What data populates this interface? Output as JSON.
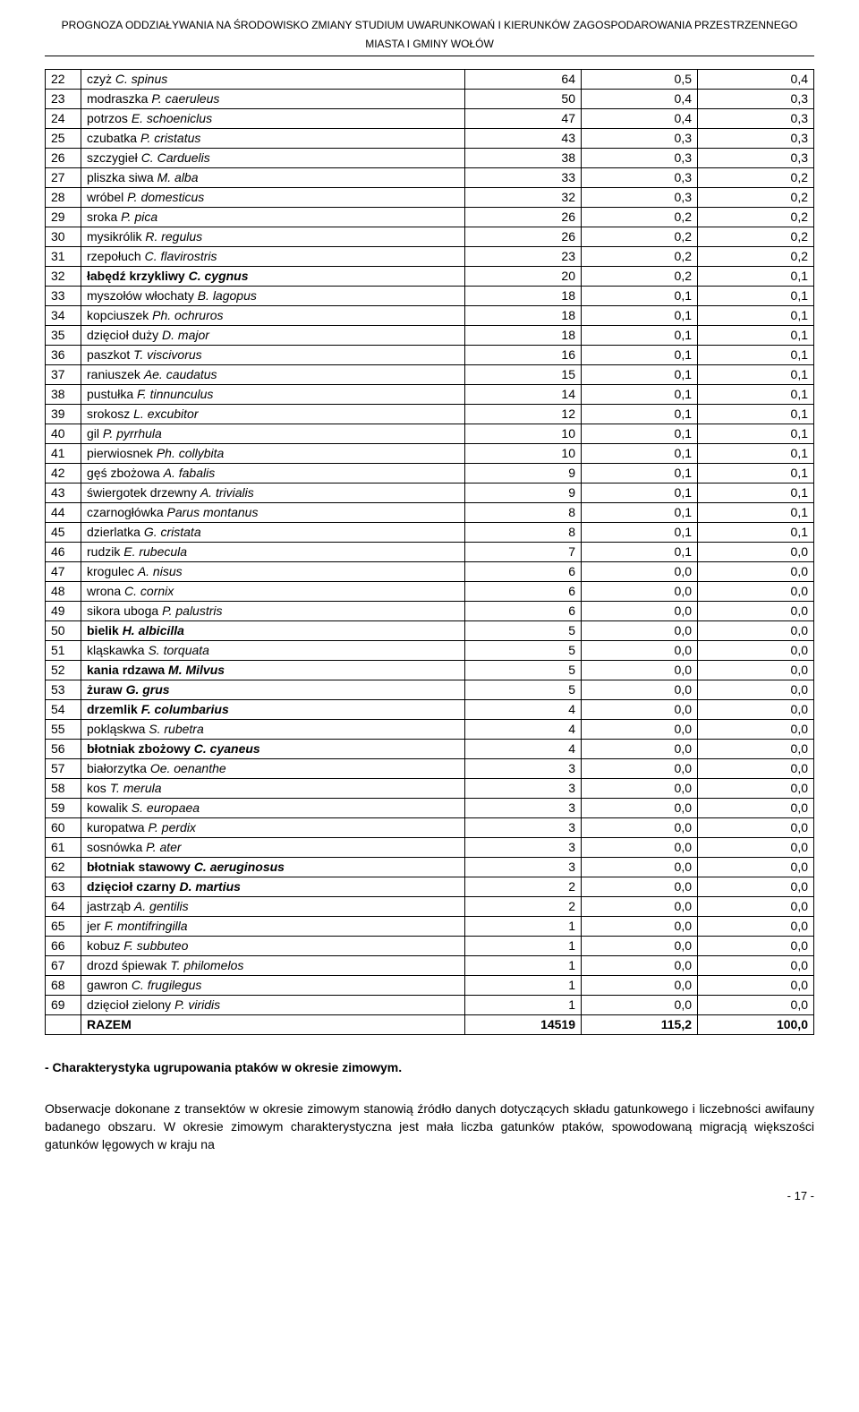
{
  "header": {
    "title_line1": "PROGNOZA ODDZIAŁYWANIA NA ŚRODOWISKO ZMIANY STUDIUM UWARUNKOWAŃ I KIERUNKÓW ZAGOSPODAROWANIA PRZESTRZENNEGO",
    "title_line2": "MIASTA I GMINY WOŁÓW"
  },
  "table": {
    "rows": [
      {
        "idx": "22",
        "name_prefix": "czyż ",
        "latin": "C. spinus",
        "v1": "64",
        "v2": "0,5",
        "v3": "0,4",
        "bold": false
      },
      {
        "idx": "23",
        "name_prefix": "modraszka ",
        "latin": "P. caeruleus",
        "v1": "50",
        "v2": "0,4",
        "v3": "0,3",
        "bold": false
      },
      {
        "idx": "24",
        "name_prefix": "potrzos ",
        "latin": "E. schoeniclus",
        "v1": "47",
        "v2": "0,4",
        "v3": "0,3",
        "bold": false
      },
      {
        "idx": "25",
        "name_prefix": "czubatka ",
        "latin": "P. cristatus",
        "v1": "43",
        "v2": "0,3",
        "v3": "0,3",
        "bold": false
      },
      {
        "idx": "26",
        "name_prefix": "szczygieł ",
        "latin": "C. Carduelis",
        "v1": "38",
        "v2": "0,3",
        "v3": "0,3",
        "bold": false
      },
      {
        "idx": "27",
        "name_prefix": "pliszka siwa ",
        "latin": "M. alba",
        "v1": "33",
        "v2": "0,3",
        "v3": "0,2",
        "bold": false
      },
      {
        "idx": "28",
        "name_prefix": "wróbel ",
        "latin": "P. domesticus",
        "v1": "32",
        "v2": "0,3",
        "v3": "0,2",
        "bold": false
      },
      {
        "idx": "29",
        "name_prefix": "sroka ",
        "latin": "P. pica",
        "v1": "26",
        "v2": "0,2",
        "v3": "0,2",
        "bold": false
      },
      {
        "idx": "30",
        "name_prefix": "mysikrólik ",
        "latin": "R. regulus",
        "v1": "26",
        "v2": "0,2",
        "v3": "0,2",
        "bold": false
      },
      {
        "idx": "31",
        "name_prefix": "rzepołuch ",
        "latin": "C. flavirostris",
        "v1": "23",
        "v2": "0,2",
        "v3": "0,2",
        "bold": false
      },
      {
        "idx": "32",
        "name_prefix": "łabędź krzykliwy ",
        "latin": "C. cygnus",
        "v1": "20",
        "v2": "0,2",
        "v3": "0,1",
        "bold": true
      },
      {
        "idx": "33",
        "name_prefix": "myszołów włochaty ",
        "latin": "B. lagopus",
        "v1": "18",
        "v2": "0,1",
        "v3": "0,1",
        "bold": false
      },
      {
        "idx": "34",
        "name_prefix": "kopciuszek ",
        "latin": "Ph. ochruros",
        "v1": "18",
        "v2": "0,1",
        "v3": "0,1",
        "bold": false
      },
      {
        "idx": "35",
        "name_prefix": "dzięcioł duży ",
        "latin": "D. major",
        "v1": "18",
        "v2": "0,1",
        "v3": "0,1",
        "bold": false
      },
      {
        "idx": "36",
        "name_prefix": "paszkot ",
        "latin": "T. viscivorus",
        "v1": "16",
        "v2": "0,1",
        "v3": "0,1",
        "bold": false
      },
      {
        "idx": "37",
        "name_prefix": "raniuszek ",
        "latin": "Ae. caudatus",
        "v1": "15",
        "v2": "0,1",
        "v3": "0,1",
        "bold": false
      },
      {
        "idx": "38",
        "name_prefix": "pustułka ",
        "latin": "F. tinnunculus",
        "v1": "14",
        "v2": "0,1",
        "v3": "0,1",
        "bold": false
      },
      {
        "idx": "39",
        "name_prefix": "srokosz ",
        "latin": "L. excubitor",
        "v1": "12",
        "v2": "0,1",
        "v3": "0,1",
        "bold": false
      },
      {
        "idx": "40",
        "name_prefix": "gil ",
        "latin": "P. pyrrhula",
        "v1": "10",
        "v2": "0,1",
        "v3": "0,1",
        "bold": false
      },
      {
        "idx": "41",
        "name_prefix": "pierwiosnek ",
        "latin": "Ph. collybita",
        "v1": "10",
        "v2": "0,1",
        "v3": "0,1",
        "bold": false
      },
      {
        "idx": "42",
        "name_prefix": "gęś zbożowa ",
        "latin": "A. fabalis",
        "v1": "9",
        "v2": "0,1",
        "v3": "0,1",
        "bold": false
      },
      {
        "idx": "43",
        "name_prefix": "świergotek drzewny ",
        "latin": "A. trivialis",
        "v1": "9",
        "v2": "0,1",
        "v3": "0,1",
        "bold": false
      },
      {
        "idx": "44",
        "name_prefix": "czarnogłówka ",
        "latin": "Parus montanus",
        "v1": "8",
        "v2": "0,1",
        "v3": "0,1",
        "bold": false
      },
      {
        "idx": "45",
        "name_prefix": "dzierlatka ",
        "latin": "G. cristata",
        "v1": "8",
        "v2": "0,1",
        "v3": "0,1",
        "bold": false
      },
      {
        "idx": "46",
        "name_prefix": "rudzik ",
        "latin": "E. rubecula",
        "v1": "7",
        "v2": "0,1",
        "v3": "0,0",
        "bold": false
      },
      {
        "idx": "47",
        "name_prefix": "krogulec ",
        "latin": "A. nisus",
        "v1": "6",
        "v2": "0,0",
        "v3": "0,0",
        "bold": false
      },
      {
        "idx": "48",
        "name_prefix": "wrona ",
        "latin": "C. cornix",
        "v1": "6",
        "v2": "0,0",
        "v3": "0,0",
        "bold": false
      },
      {
        "idx": "49",
        "name_prefix": "sikora uboga ",
        "latin": "P. palustris",
        "v1": "6",
        "v2": "0,0",
        "v3": "0,0",
        "bold": false
      },
      {
        "idx": "50",
        "name_prefix": "bielik ",
        "latin": "H. albicilla",
        "v1": "5",
        "v2": "0,0",
        "v3": "0,0",
        "bold": true
      },
      {
        "idx": "51",
        "name_prefix": "kląskawka ",
        "latin": "S. torquata",
        "v1": "5",
        "v2": "0,0",
        "v3": "0,0",
        "bold": false
      },
      {
        "idx": "52",
        "name_prefix": "kania rdzawa ",
        "latin": "M. Milvus",
        "v1": "5",
        "v2": "0,0",
        "v3": "0,0",
        "bold": true
      },
      {
        "idx": "53",
        "name_prefix": "żuraw ",
        "latin": "G. grus",
        "v1": "5",
        "v2": "0,0",
        "v3": "0,0",
        "bold": true
      },
      {
        "idx": "54",
        "name_prefix": "drzemlik ",
        "latin": "F. columbarius",
        "v1": "4",
        "v2": "0,0",
        "v3": "0,0",
        "bold": true
      },
      {
        "idx": "55",
        "name_prefix": "pokląskwa ",
        "latin": "S. rubetra",
        "v1": "4",
        "v2": "0,0",
        "v3": "0,0",
        "bold": false
      },
      {
        "idx": "56",
        "name_prefix": "błotniak zbożowy ",
        "latin": "C. cyaneus",
        "v1": "4",
        "v2": "0,0",
        "v3": "0,0",
        "bold": true
      },
      {
        "idx": "57",
        "name_prefix": "białorzytka ",
        "latin": "Oe. oenanthe",
        "v1": "3",
        "v2": "0,0",
        "v3": "0,0",
        "bold": false
      },
      {
        "idx": "58",
        "name_prefix": "kos ",
        "latin": "T. merula",
        "v1": "3",
        "v2": "0,0",
        "v3": "0,0",
        "bold": false
      },
      {
        "idx": "59",
        "name_prefix": "kowalik ",
        "latin": "S. europaea",
        "v1": "3",
        "v2": "0,0",
        "v3": "0,0",
        "bold": false
      },
      {
        "idx": "60",
        "name_prefix": "kuropatwa ",
        "latin": "P. perdix",
        "v1": "3",
        "v2": "0,0",
        "v3": "0,0",
        "bold": false
      },
      {
        "idx": "61",
        "name_prefix": "sosnówka ",
        "latin": "P. ater",
        "v1": "3",
        "v2": "0,0",
        "v3": "0,0",
        "bold": false
      },
      {
        "idx": "62",
        "name_prefix": "błotniak stawowy ",
        "latin": "C. aeruginosus",
        "v1": "3",
        "v2": "0,0",
        "v3": "0,0",
        "bold": true
      },
      {
        "idx": "63",
        "name_prefix": "dzięcioł czarny ",
        "latin": "D. martius",
        "v1": "2",
        "v2": "0,0",
        "v3": "0,0",
        "bold": true
      },
      {
        "idx": "64",
        "name_prefix": "jastrząb ",
        "latin": "A. gentilis",
        "v1": "2",
        "v2": "0,0",
        "v3": "0,0",
        "bold": false
      },
      {
        "idx": "65",
        "name_prefix": "jer ",
        "latin": "F. montifringilla",
        "v1": "1",
        "v2": "0,0",
        "v3": "0,0",
        "bold": false
      },
      {
        "idx": "66",
        "name_prefix": "kobuz ",
        "latin": "F. subbuteo",
        "v1": "1",
        "v2": "0,0",
        "v3": "0,0",
        "bold": false
      },
      {
        "idx": "67",
        "name_prefix": "drozd śpiewak ",
        "latin": "T. philomelos",
        "v1": "1",
        "v2": "0,0",
        "v3": "0,0",
        "bold": false
      },
      {
        "idx": "68",
        "name_prefix": "gawron ",
        "latin": "C. frugilegus",
        "v1": "1",
        "v2": "0,0",
        "v3": "0,0",
        "bold": false
      },
      {
        "idx": "69",
        "name_prefix": "dzięcioł zielony ",
        "latin": "P. viridis",
        "v1": "1",
        "v2": "0,0",
        "v3": "0,0",
        "bold": false
      }
    ],
    "total": {
      "label": "RAZEM",
      "v1": "14519",
      "v2": "115,2",
      "v3": "100,0"
    }
  },
  "section_title": "- Charakterystyka ugrupowania ptaków w okresie zimowym.",
  "body_text": "Obserwacje dokonane z transektów w okresie zimowym stanowią źródło danych dotyczących składu gatunkowego i liczebności awifauny badanego obszaru. W okresie zimowym charakterystyczna jest mała liczba gatunków ptaków, spowodowaną migracją większości gatunków lęgowych w kraju na",
  "page_num": "- 17 -",
  "colors": {
    "text": "#000000",
    "background": "#ffffff",
    "border": "#000000"
  }
}
